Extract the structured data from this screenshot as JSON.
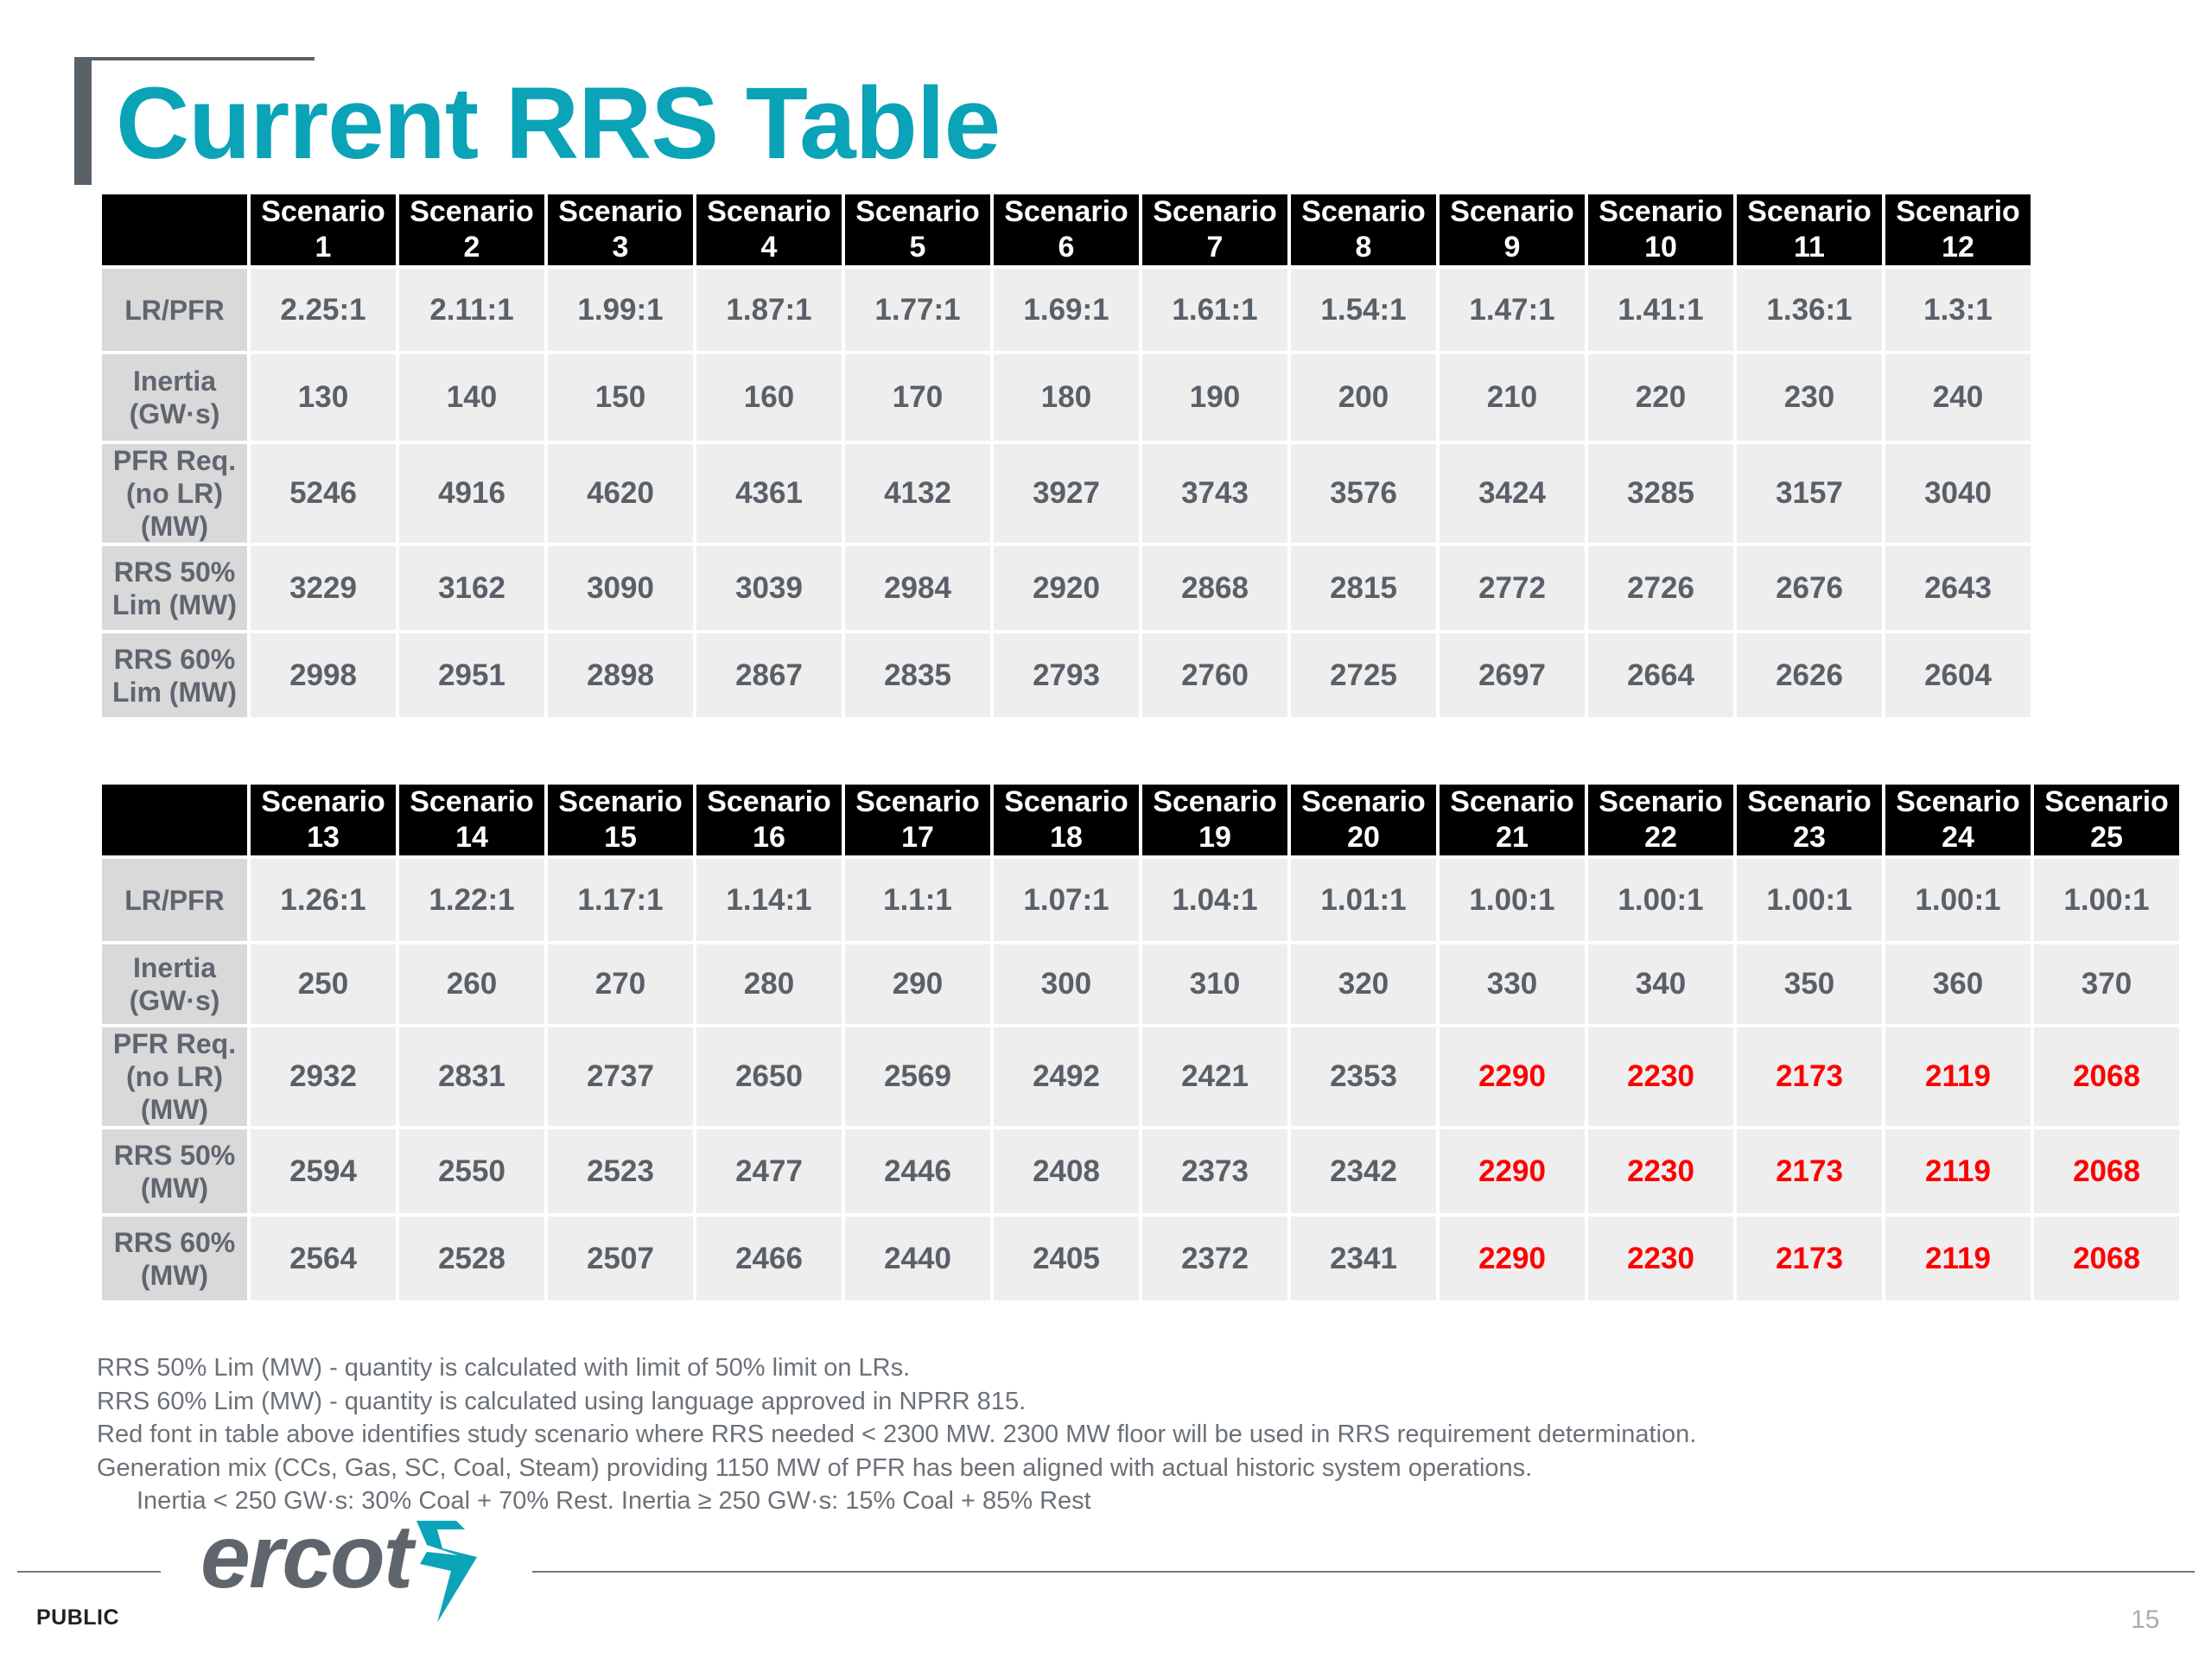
{
  "page": {
    "title": "Current RRS Table",
    "footer_label": "PUBLIC",
    "page_number": "15",
    "logo_text": "ercot"
  },
  "table_top": {
    "columns": [
      {
        "line1": "Scenario",
        "line2": "1"
      },
      {
        "line1": "Scenario",
        "line2": "2"
      },
      {
        "line1": "Scenario",
        "line2": "3"
      },
      {
        "line1": "Scenario",
        "line2": "4"
      },
      {
        "line1": "Scenario",
        "line2": "5"
      },
      {
        "line1": "Scenario",
        "line2": "6"
      },
      {
        "line1": "Scenario",
        "line2": "7"
      },
      {
        "line1": "Scenario",
        "line2": "8"
      },
      {
        "line1": "Scenario",
        "line2": "9"
      },
      {
        "line1": "Scenario",
        "line2": "10"
      },
      {
        "line1": "Scenario",
        "line2": "11"
      },
      {
        "line1": "Scenario",
        "line2": "12"
      }
    ],
    "rows": [
      {
        "label": [
          "LR/PFR"
        ],
        "values": [
          "2.25:1",
          "2.11:1",
          "1.99:1",
          "1.87:1",
          "1.77:1",
          "1.69:1",
          "1.61:1",
          "1.54:1",
          "1.47:1",
          "1.41:1",
          "1.36:1",
          "1.3:1"
        ]
      },
      {
        "label": [
          "Inertia",
          "(GW·s)"
        ],
        "values": [
          "130",
          "140",
          "150",
          "160",
          "170",
          "180",
          "190",
          "200",
          "210",
          "220",
          "230",
          "240"
        ]
      },
      {
        "label": [
          "PFR Req.",
          "(no LR)",
          "(MW)"
        ],
        "values": [
          "5246",
          "4916",
          "4620",
          "4361",
          "4132",
          "3927",
          "3743",
          "3576",
          "3424",
          "3285",
          "3157",
          "3040"
        ]
      },
      {
        "label": [
          "RRS 50%",
          "Lim (MW)"
        ],
        "values": [
          "3229",
          "3162",
          "3090",
          "3039",
          "2984",
          "2920",
          "2868",
          "2815",
          "2772",
          "2726",
          "2676",
          "2643"
        ]
      },
      {
        "label": [
          "RRS 60%",
          "Lim (MW)"
        ],
        "values": [
          "2998",
          "2951",
          "2898",
          "2867",
          "2835",
          "2793",
          "2760",
          "2725",
          "2697",
          "2664",
          "2626",
          "2604"
        ]
      }
    ]
  },
  "table_bottom": {
    "columns": [
      {
        "line1": "Scenario",
        "line2": "13"
      },
      {
        "line1": "Scenario",
        "line2": "14"
      },
      {
        "line1": "Scenario",
        "line2": "15"
      },
      {
        "line1": "Scenario",
        "line2": "16"
      },
      {
        "line1": "Scenario",
        "line2": "17"
      },
      {
        "line1": "Scenario",
        "line2": "18"
      },
      {
        "line1": "Scenario",
        "line2": "19"
      },
      {
        "line1": "Scenario",
        "line2": "20"
      },
      {
        "line1": "Scenario",
        "line2": "21"
      },
      {
        "line1": "Scenario",
        "line2": "22"
      },
      {
        "line1": "Scenario",
        "line2": "23"
      },
      {
        "line1": "Scenario",
        "line2": "24"
      },
      {
        "line1": "Scenario",
        "line2": "25"
      }
    ],
    "highlight_color": "#ff0000",
    "rows": [
      {
        "label": [
          "LR/PFR"
        ],
        "values": [
          "1.26:1",
          "1.22:1",
          "1.17:1",
          "1.14:1",
          "1.1:1",
          "1.07:1",
          "1.04:1",
          "1.01:1",
          "1.00:1",
          "1.00:1",
          "1.00:1",
          "1.00:1",
          "1.00:1"
        ],
        "red": [
          false,
          false,
          false,
          false,
          false,
          false,
          false,
          false,
          false,
          false,
          false,
          false,
          false
        ]
      },
      {
        "label": [
          "Inertia",
          "(GW·s)"
        ],
        "values": [
          "250",
          "260",
          "270",
          "280",
          "290",
          "300",
          "310",
          "320",
          "330",
          "340",
          "350",
          "360",
          "370"
        ],
        "red": [
          false,
          false,
          false,
          false,
          false,
          false,
          false,
          false,
          false,
          false,
          false,
          false,
          false
        ]
      },
      {
        "label": [
          "PFR Req.",
          "(no LR)",
          "(MW)"
        ],
        "values": [
          "2932",
          "2831",
          "2737",
          "2650",
          "2569",
          "2492",
          "2421",
          "2353",
          "2290",
          "2230",
          "2173",
          "2119",
          "2068"
        ],
        "red": [
          false,
          false,
          false,
          false,
          false,
          false,
          false,
          false,
          true,
          true,
          true,
          true,
          true
        ]
      },
      {
        "label": [
          "RRS 50%",
          "(MW)"
        ],
        "values": [
          "2594",
          "2550",
          "2523",
          "2477",
          "2446",
          "2408",
          "2373",
          "2342",
          "2290",
          "2230",
          "2173",
          "2119",
          "2068"
        ],
        "red": [
          false,
          false,
          false,
          false,
          false,
          false,
          false,
          false,
          true,
          true,
          true,
          true,
          true
        ]
      },
      {
        "label": [
          "RRS 60%",
          "(MW)"
        ],
        "values": [
          "2564",
          "2528",
          "2507",
          "2466",
          "2440",
          "2405",
          "2372",
          "2341",
          "2290",
          "2230",
          "2173",
          "2119",
          "2068"
        ],
        "red": [
          false,
          false,
          false,
          false,
          false,
          false,
          false,
          false,
          true,
          true,
          true,
          true,
          true
        ]
      }
    ]
  },
  "notes": [
    "RRS 50% Lim (MW) - quantity is calculated with limit of 50% limit on LRs.",
    "RRS 60% Lim (MW) - quantity is calculated using language approved in NPRR 815.",
    "Red font in table above identifies study scenario where RRS needed < 2300 MW. 2300 MW floor will be used in RRS requirement determination.",
    "Generation mix (CCs, Gas, SC, Coal, Steam)  providing 1150 MW of PFR has been aligned with actual historic system operations.",
    "Inertia < 250 GW·s: 30% Coal + 70% Rest. Inertia ≥ 250 GW·s: 15% Coal + 85% Rest"
  ]
}
